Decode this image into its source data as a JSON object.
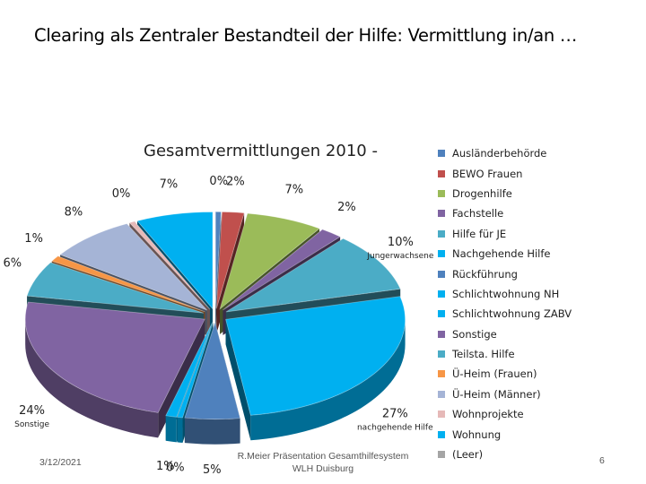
{
  "slide": {
    "title": "Clearing als Zentraler Bestandteil der Hilfe: Vermittlung in/an …",
    "footer_date": "3/12/2021",
    "footer_text_line1": "R.Meier Präsentation Gesamthilfesystem",
    "footer_text_line2": "WLH Duisburg",
    "page_number": "6"
  },
  "chart_data": {
    "type": "pie",
    "title": "Gesamtvermittlungen 2010 -",
    "legend_position": "right",
    "categories": [
      "Ausländerbehörde",
      "BEWO Frauen",
      "Drogenhilfe",
      "Fachstelle",
      "Hilfe für JE",
      "Nachgehende Hilfe",
      "Rückführung",
      "Schlichtwohnung NH",
      "Schlichtwohnung ZABV",
      "Sonstige",
      "Teilsta. Hilfe",
      "Ü-Heim (Frauen)",
      "Ü-Heim (Männer)",
      "Wohnprojekte",
      "Wohnung",
      "(Leer)"
    ],
    "values": [
      0.5,
      2,
      7,
      2,
      10,
      27,
      5,
      0.5,
      1,
      24,
      6,
      1,
      8,
      0.5,
      7,
      0
    ],
    "percent_labels": [
      "0%",
      "2%",
      "7%",
      "2%",
      "10%",
      "27%",
      "5%",
      "0%",
      "1%",
      "24%",
      "6%",
      "1%",
      "8%",
      "0%",
      "7%",
      ""
    ],
    "slice_labels": [
      "",
      "",
      "",
      "",
      "Jungerwachsene",
      "nachgehende Hilfe",
      "",
      "",
      "",
      "Sonstige",
      "",
      "",
      "",
      "",
      "",
      ""
    ],
    "colors": [
      "#4f81bd",
      "#c0504d",
      "#9bbb59",
      "#8064a2",
      "#4bacc6",
      "#00b0f0",
      "#4f81bd",
      "#00b0f0",
      "#00b0f0",
      "#8064a2",
      "#4bacc6",
      "#f79646",
      "#a5b4d6",
      "#e6b9b8",
      "#00b0f0",
      "#a5a5a5"
    ],
    "legend_colors": [
      "#4f81bd",
      "#c0504d",
      "#9bbb59",
      "#8064a2",
      "#4bacc6",
      "#00b0f0",
      "#4f81bd",
      "#00b0f0",
      "#00b0f0",
      "#8064a2",
      "#4bacc6",
      "#f79646",
      "#a5b4d6",
      "#e6b9b8",
      "#00b0f0",
      "#a5a5a5"
    ]
  }
}
